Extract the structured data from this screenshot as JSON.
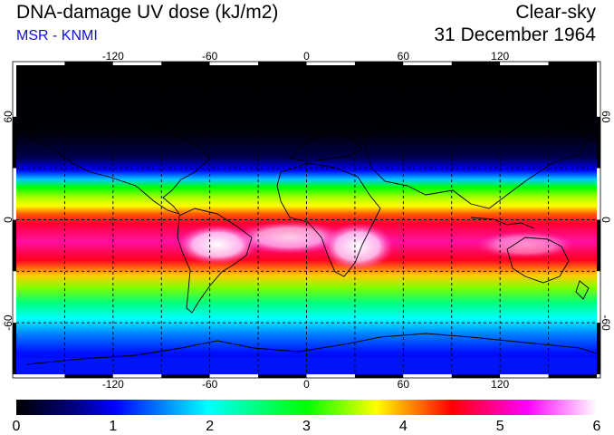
{
  "header": {
    "title": "DNA-damage UV dose (kJ/m2)",
    "source": "MSR - KNMI",
    "condition": "Clear-sky",
    "date": "31 December 1964"
  },
  "map": {
    "projection": "equirectangular",
    "lon_range": [
      -180,
      180
    ],
    "lat_range": [
      -90,
      90
    ],
    "lon_ticks": [
      "-120",
      "-60",
      "0",
      "60",
      "120"
    ],
    "lat_ticks": [
      "60",
      "0",
      "-60"
    ],
    "gridlines": "dashed"
  },
  "colorbar": {
    "min": 0,
    "max": 6,
    "tick_labels": [
      "0",
      "1",
      "2",
      "3",
      "4",
      "5",
      "6"
    ],
    "colors": [
      "#000000",
      "#0000ff",
      "#00ffff",
      "#00ff00",
      "#ffff00",
      "#ff0000",
      "#ff00ff",
      "#ffffff"
    ]
  }
}
